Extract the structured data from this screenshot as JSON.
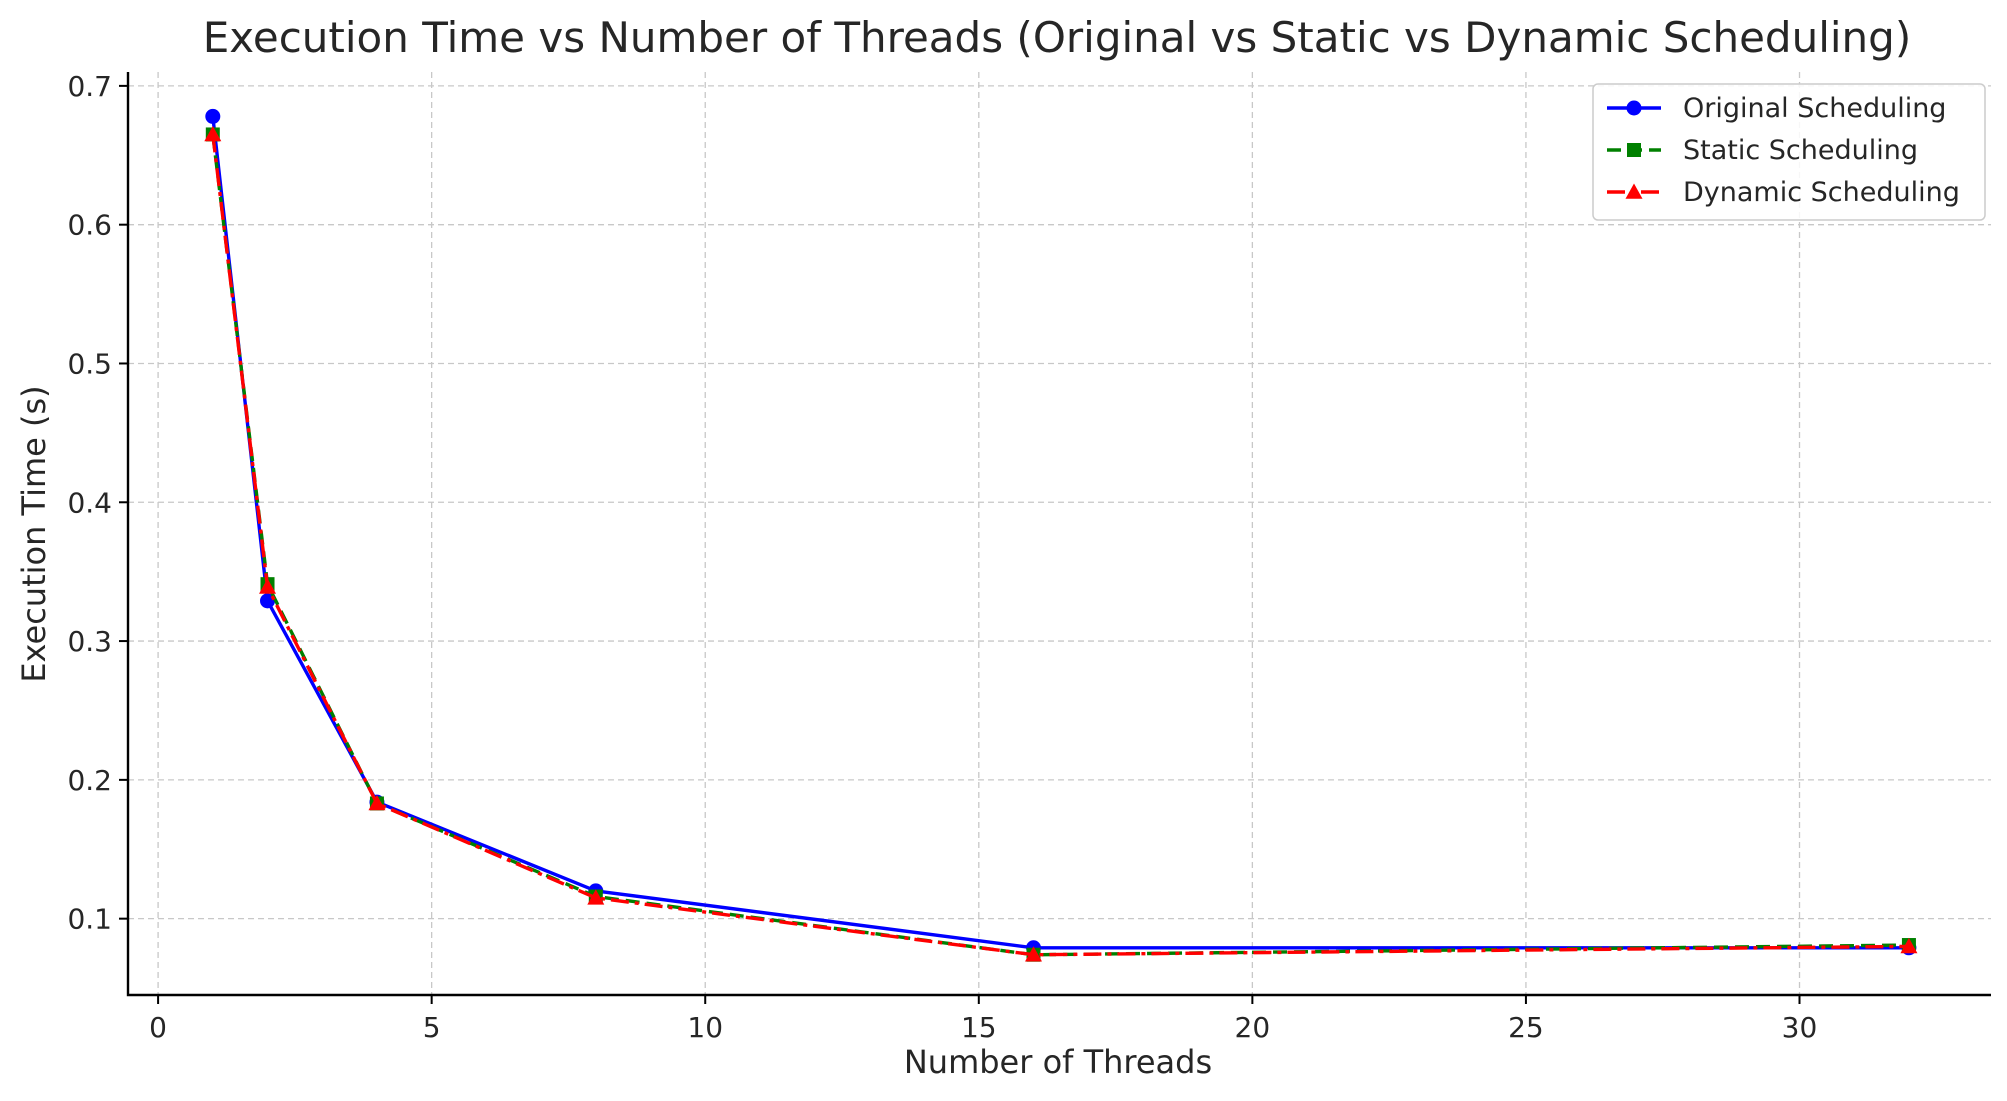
{
  "chart_data": {
    "type": "line",
    "title": "Execution Time vs Number of Threads (Original vs Static vs Dynamic Scheduling)",
    "xlabel": "Number of Threads",
    "ylabel": "Execution Time (s)",
    "xlim": [
      -0.55,
      33.5
    ],
    "ylim": [
      0.045,
      0.71
    ],
    "xticks": [
      0,
      5,
      10,
      15,
      20,
      25,
      30
    ],
    "yticks": [
      0.1,
      0.2,
      0.3,
      0.4,
      0.5,
      0.6,
      0.7
    ],
    "grid": true,
    "legend_position": "top-right",
    "x": [
      1,
      2,
      4,
      8,
      16,
      32
    ],
    "series": [
      {
        "name": "Original Scheduling",
        "values": [
          0.678,
          0.329,
          0.184,
          0.12,
          0.079,
          0.079
        ],
        "color": "#0000ff",
        "marker": "circle",
        "line_style": "solid"
      },
      {
        "name": "Static Scheduling",
        "values": [
          0.665,
          0.341,
          0.183,
          0.116,
          0.074,
          0.081
        ],
        "color": "#008000",
        "marker": "square",
        "line_style": "dashed"
      },
      {
        "name": "Dynamic Scheduling",
        "values": [
          0.665,
          0.339,
          0.183,
          0.115,
          0.074,
          0.08
        ],
        "color": "#ff0000",
        "marker": "triangle",
        "line_style": "dashdot"
      }
    ]
  }
}
